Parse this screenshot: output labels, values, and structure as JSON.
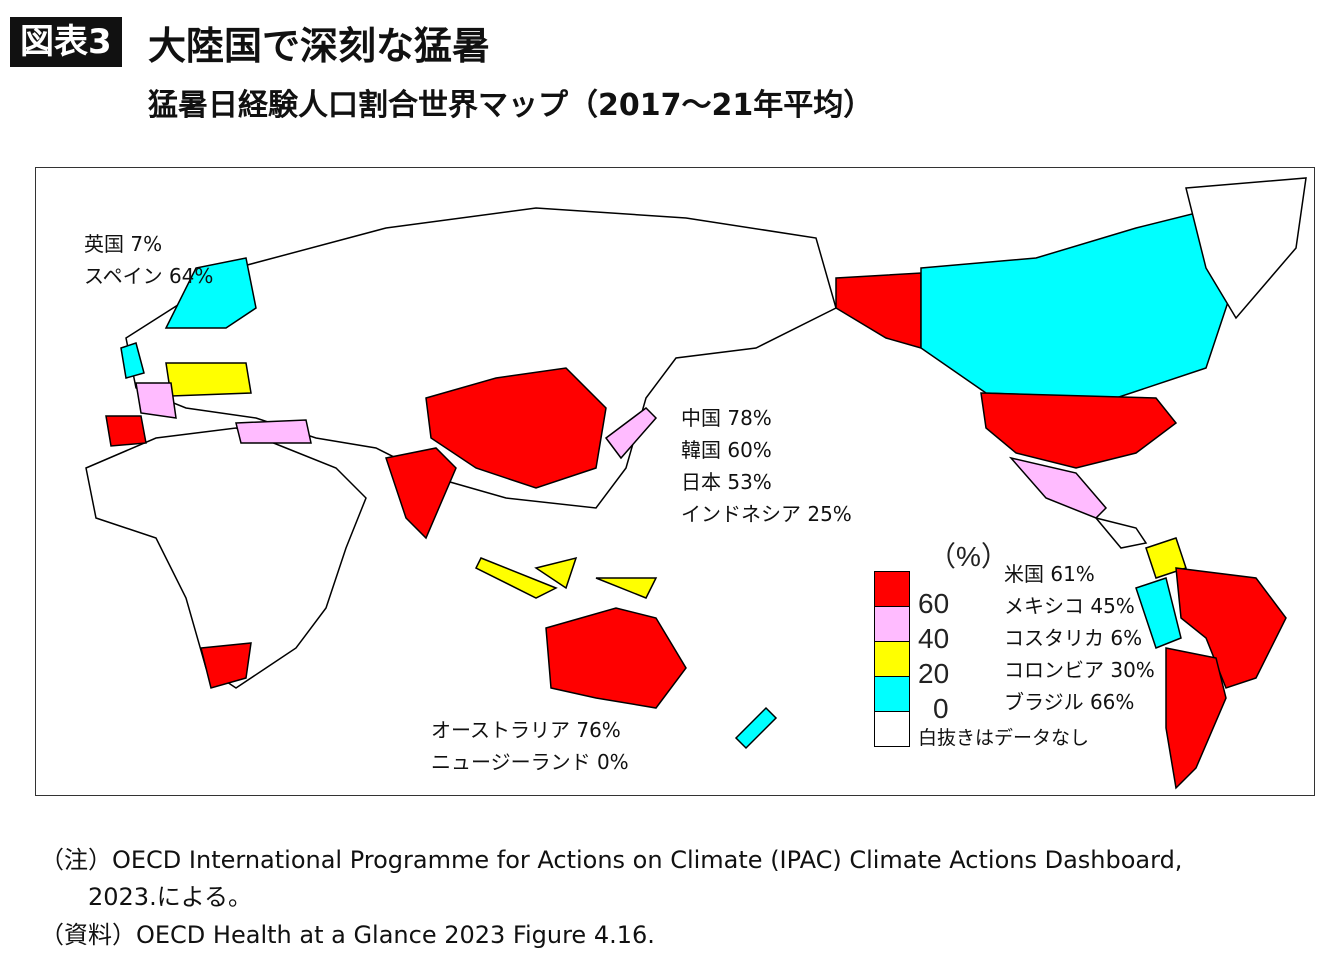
{
  "header": {
    "badge": "図表3",
    "title": "大陸国で深刻な猛暑",
    "subtitle": "猛暑日経験人口割合世界マップ（2017～21年平均）"
  },
  "map_labels": {
    "europe": [
      "英国 7%",
      "スペイン 64%"
    ],
    "asia": [
      "中国 78%",
      "韓国 60%",
      "日本 53%",
      "インドネシア 25%"
    ],
    "oceania": [
      "オーストラリア 76%",
      "ニュージーランド 0%"
    ],
    "americas": [
      "米国 61%",
      "メキシコ 45%",
      "コスタリカ 6%",
      "コロンビア 30%",
      "ブラジル 66%"
    ]
  },
  "legend": {
    "unit": "（%）",
    "ticks": [
      "60",
      "40",
      "20",
      "0"
    ],
    "no_data": "白抜きはデータなし",
    "colors": {
      "60+": "#ff0000",
      "40-60": "#ffbbff",
      "20-40": "#ffff00",
      "0-20": "#00ffff",
      "no_data": "#ffffff"
    }
  },
  "notes": {
    "note": "（注）OECD International Programme for Actions on Climate (IPAC) Climate Actions Dashboard,",
    "note2": "2023.による。",
    "source": "（資料）OECD Health at a Glance 2023 Figure 4.16."
  }
}
